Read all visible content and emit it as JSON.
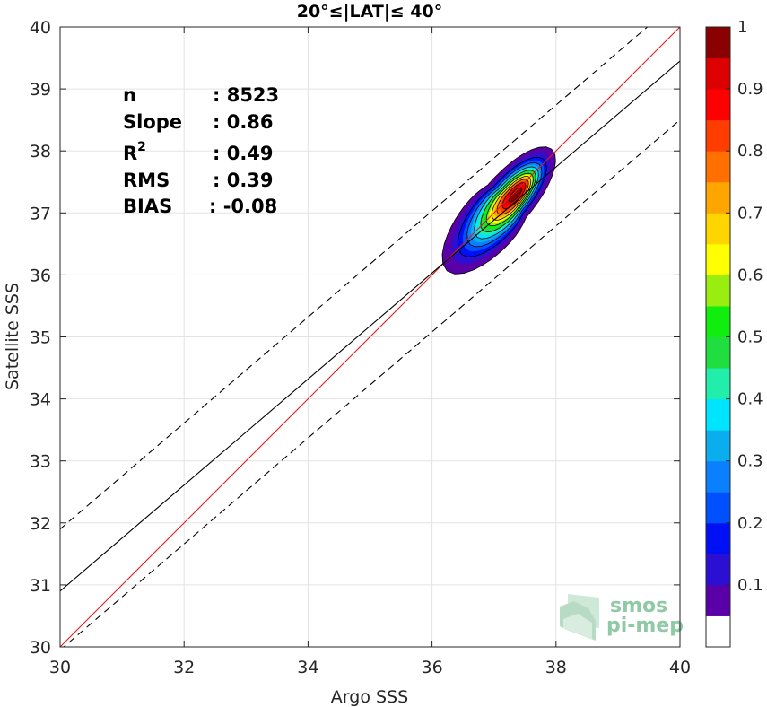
{
  "chart_data": {
    "type": "heatmap",
    "title": "20°≤|LAT|≤ 40°",
    "xlabel": "Argo SSS",
    "ylabel": "Satellite SSS",
    "xlim": [
      30,
      40
    ],
    "ylim": [
      30,
      40
    ],
    "xticks": [
      "30",
      "32",
      "34",
      "36",
      "38",
      "40"
    ],
    "yticks": [
      "30",
      "31",
      "32",
      "33",
      "34",
      "35",
      "36",
      "37",
      "38",
      "39",
      "40"
    ],
    "grid": true,
    "lines": [
      {
        "name": "identity",
        "color": "#e41a1c",
        "style": "solid",
        "points": [
          [
            30,
            30
          ],
          [
            40,
            40
          ]
        ]
      },
      {
        "name": "regression",
        "color": "#000000",
        "style": "solid",
        "points": [
          [
            30,
            30.9
          ],
          [
            40,
            39.45
          ]
        ]
      },
      {
        "name": "upper-bound",
        "color": "#000000",
        "style": "dashed",
        "points": [
          [
            30,
            31.9
          ],
          [
            40,
            40.45
          ]
        ]
      },
      {
        "name": "lower-bound",
        "color": "#000000",
        "style": "dashed",
        "points": [
          [
            30,
            29.95
          ],
          [
            40,
            38.5
          ]
        ]
      }
    ],
    "density": {
      "center": [
        37.35,
        37.3
      ],
      "levels": [
        0.05,
        0.1,
        0.2,
        0.3,
        0.4,
        0.5,
        0.6,
        0.7,
        0.8,
        0.9
      ],
      "peak": 0.95
    },
    "colorbar": {
      "ticks": [
        "0.1",
        "0.2",
        "0.3",
        "0.4",
        "0.5",
        "0.6",
        "0.7",
        "0.8",
        "0.9",
        "1"
      ],
      "tick_values": [
        0.1,
        0.2,
        0.3,
        0.4,
        0.5,
        0.6,
        0.7,
        0.8,
        0.9,
        1.0
      ],
      "colors": [
        "#ffffff",
        "#5a00a8",
        "#2b0fd2",
        "#0010f5",
        "#0050ff",
        "#0b80ff",
        "#0aaeef",
        "#00e5ff",
        "#20eeaa",
        "#20dd40",
        "#10ee10",
        "#99ee10",
        "#ffff00",
        "#ffd500",
        "#ffa500",
        "#ff7000",
        "#ff3d00",
        "#ff0000",
        "#dd0000",
        "#8b0000"
      ]
    }
  },
  "stats": [
    {
      "label": "n",
      "value": ": 8523"
    },
    {
      "label": "Slope",
      "value": ": 0.86"
    },
    {
      "label": "R",
      "sup": "2",
      "value": ": 0.49"
    },
    {
      "label": "RMS",
      "value": ": 0.39"
    },
    {
      "label": "BIAS",
      "value": ": -0.08"
    }
  ],
  "logo": {
    "line1": "smos",
    "line2": "pi-mep"
  }
}
